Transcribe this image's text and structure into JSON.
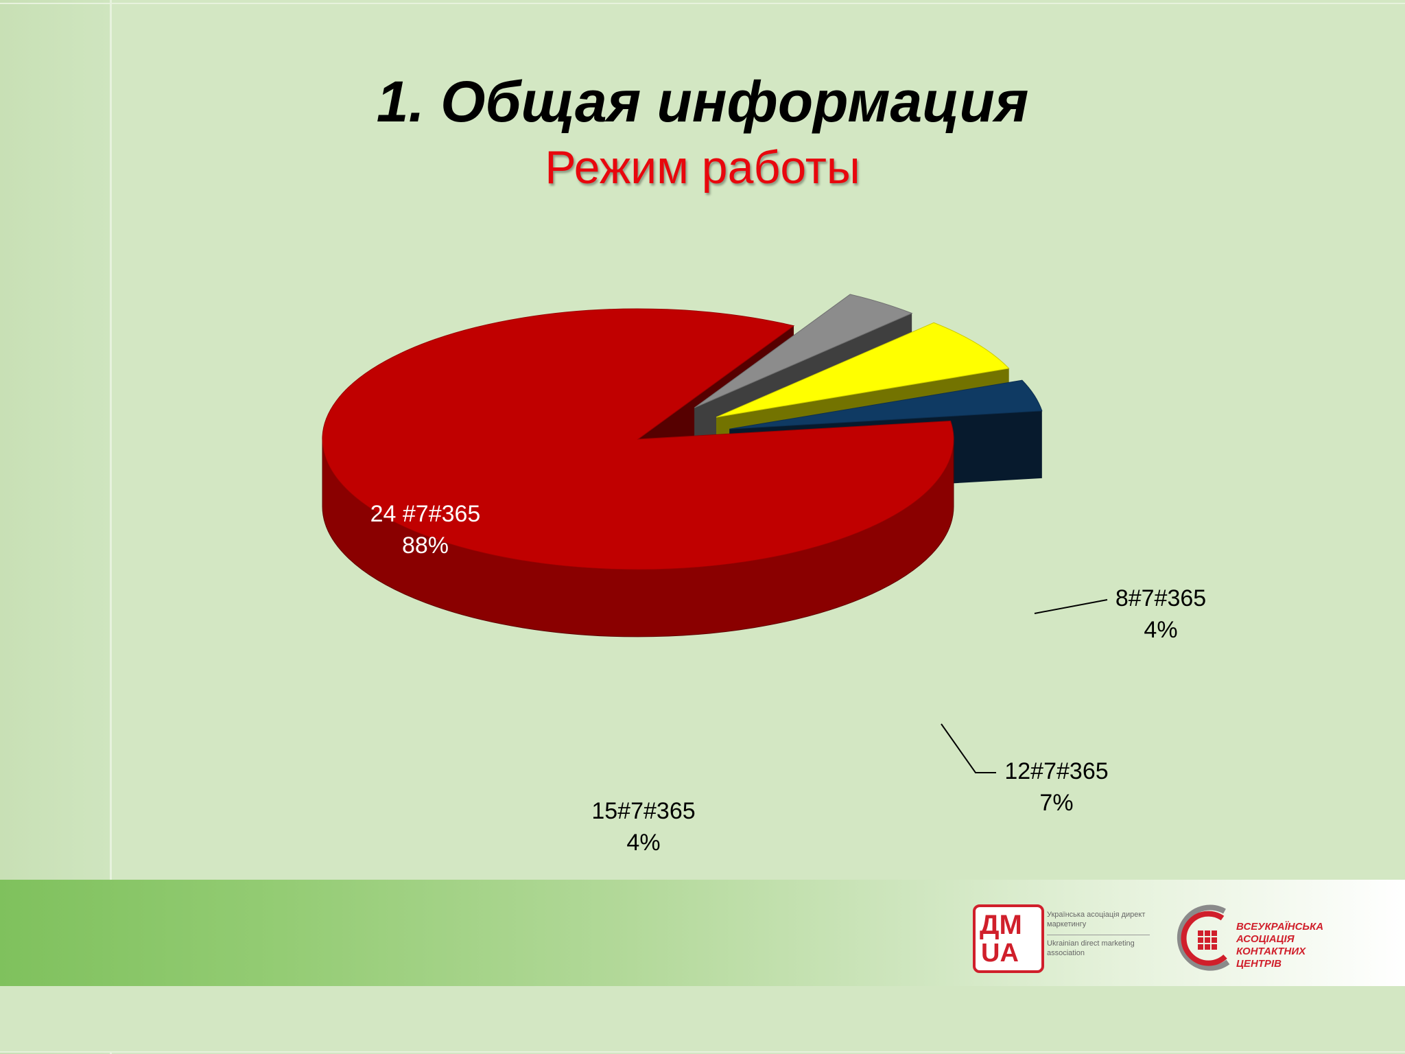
{
  "slide": {
    "title": "1. Общая информация",
    "subtitle": "Режим работы"
  },
  "chart_data": {
    "type": "pie",
    "title": "",
    "style": "3d-exploded",
    "slices": [
      {
        "label": "24 #7#365",
        "percent_label": "88%",
        "value": 88,
        "color": "#c00000"
      },
      {
        "label": "8#7#365",
        "percent_label": "4%",
        "value": 4,
        "color": "#8c8c8c"
      },
      {
        "label": "12#7#365",
        "percent_label": "7%",
        "value": 7,
        "color": "#ffff00"
      },
      {
        "label": "15#7#365",
        "percent_label": "4%",
        "value": 4,
        "color": "#0f3a63"
      }
    ]
  },
  "footer": {
    "logo_dm": {
      "mark_line1": "ДМ",
      "mark_line2": "UA",
      "text_ua": "Українська асоціація директ маркетингу",
      "text_en": "Ukrainian direct marketing association"
    },
    "logo_contact_centers": {
      "text": "ВСЕУКРАЇНСЬКА АСОЦІАЦІЯ КОНТАКТНИХ ЦЕНТРІВ"
    }
  }
}
